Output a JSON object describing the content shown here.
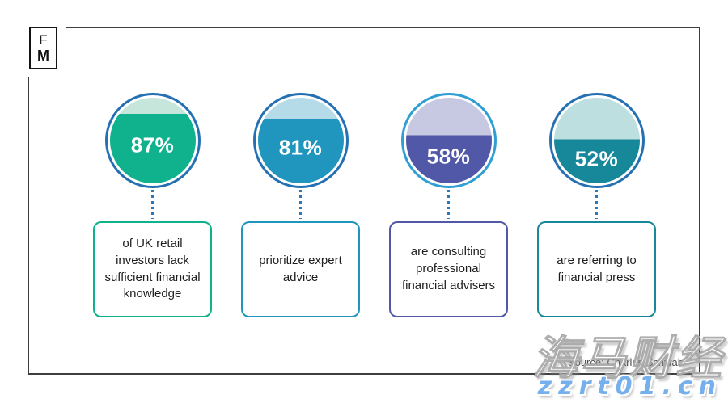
{
  "brand": {
    "logo_top": "F",
    "logo_bottom": "M"
  },
  "chart_data": {
    "type": "pie",
    "style": "percentage-area-filled-circles",
    "title": "",
    "legend": "none",
    "items": [
      {
        "value": 87,
        "display": "87%",
        "description": "of UK retail investors lack sufficient financial knowledge",
        "fill_color": "#0fb28c",
        "remainder_color": "#c6e6db",
        "ring_color": "#2470b3"
      },
      {
        "value": 81,
        "display": "81%",
        "description": "prioritize expert advice",
        "fill_color": "#2095bd",
        "remainder_color": "#b5dbe9",
        "ring_color": "#2470b3"
      },
      {
        "value": 58,
        "display": "58%",
        "description": "are consulting professional financial advisers",
        "fill_color": "#5058a7",
        "remainder_color": "#c7c8e2",
        "ring_color": "#2f9ed3"
      },
      {
        "value": 52,
        "display": "52%",
        "description": "are referring to financial press",
        "fill_color": "#17879a",
        "remainder_color": "#bddfe0",
        "ring_color": "#2470b3"
      }
    ],
    "connector_color": "#2e77b5"
  },
  "footer": {
    "source": "Source: Charles Schwab"
  },
  "watermark": {
    "brand_cjk": "海马财经",
    "site_url": "zzrt01.cn"
  }
}
